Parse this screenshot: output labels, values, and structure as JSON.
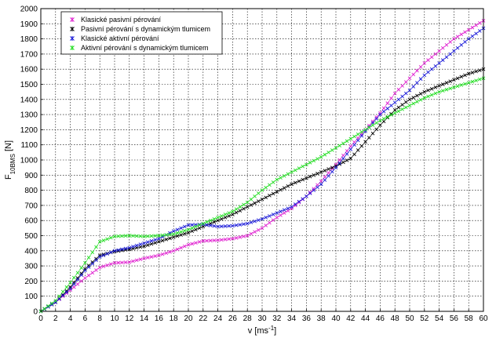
{
  "chart_data": {
    "type": "line",
    "title": "",
    "xlabel": "v [ms",
    "xlabel_sup": "-1",
    "xlabel_close": "]",
    "ylabel_main": "F",
    "ylabel_sub": "10BMS",
    "ylabel_unit": " [N]",
    "xlim": [
      0,
      60
    ],
    "ylim": [
      0,
      2000
    ],
    "x_ticks": [
      0,
      2,
      4,
      6,
      8,
      10,
      12,
      14,
      16,
      18,
      20,
      22,
      24,
      26,
      28,
      30,
      32,
      34,
      36,
      38,
      40,
      42,
      44,
      46,
      48,
      50,
      52,
      54,
      56,
      58,
      60
    ],
    "y_ticks": [
      0,
      100,
      200,
      300,
      400,
      500,
      600,
      700,
      800,
      900,
      1000,
      1100,
      1200,
      1300,
      1400,
      1500,
      1600,
      1700,
      1800,
      1900,
      2000
    ],
    "grid": true,
    "legend_placement": "top-left",
    "marker": "x",
    "series": [
      {
        "name": "Klasické pasivní pérování",
        "color": "#e020d0",
        "points": [
          [
            0,
            0
          ],
          [
            2,
            60
          ],
          [
            4,
            140
          ],
          [
            6,
            220
          ],
          [
            8,
            290
          ],
          [
            10,
            320
          ],
          [
            12,
            325
          ],
          [
            14,
            350
          ],
          [
            16,
            370
          ],
          [
            18,
            400
          ],
          [
            20,
            440
          ],
          [
            22,
            465
          ],
          [
            24,
            470
          ],
          [
            26,
            480
          ],
          [
            28,
            500
          ],
          [
            30,
            550
          ],
          [
            32,
            620
          ],
          [
            34,
            680
          ],
          [
            36,
            760
          ],
          [
            38,
            860
          ],
          [
            40,
            970
          ],
          [
            42,
            1090
          ],
          [
            44,
            1200
          ],
          [
            46,
            1310
          ],
          [
            48,
            1440
          ],
          [
            50,
            1540
          ],
          [
            52,
            1640
          ],
          [
            54,
            1720
          ],
          [
            56,
            1800
          ],
          [
            58,
            1860
          ],
          [
            60,
            1920
          ]
        ]
      },
      {
        "name": "Pasivní pérování s dynamickým tlumicem",
        "color": "#000000",
        "points": [
          [
            0,
            0
          ],
          [
            2,
            60
          ],
          [
            4,
            160
          ],
          [
            6,
            280
          ],
          [
            8,
            370
          ],
          [
            10,
            395
          ],
          [
            12,
            410
          ],
          [
            14,
            430
          ],
          [
            16,
            460
          ],
          [
            18,
            490
          ],
          [
            20,
            520
          ],
          [
            22,
            560
          ],
          [
            24,
            600
          ],
          [
            26,
            640
          ],
          [
            28,
            690
          ],
          [
            30,
            740
          ],
          [
            32,
            790
          ],
          [
            34,
            840
          ],
          [
            36,
            880
          ],
          [
            38,
            920
          ],
          [
            40,
            960
          ],
          [
            42,
            1010
          ],
          [
            44,
            1120
          ],
          [
            46,
            1230
          ],
          [
            48,
            1330
          ],
          [
            50,
            1400
          ],
          [
            52,
            1450
          ],
          [
            54,
            1490
          ],
          [
            56,
            1530
          ],
          [
            58,
            1570
          ],
          [
            60,
            1600
          ]
        ]
      },
      {
        "name": "Klasické aktivní pérování",
        "color": "#1a1ad8",
        "points": [
          [
            0,
            0
          ],
          [
            2,
            60
          ],
          [
            4,
            150
          ],
          [
            6,
            270
          ],
          [
            8,
            360
          ],
          [
            10,
            400
          ],
          [
            12,
            420
          ],
          [
            14,
            450
          ],
          [
            16,
            480
          ],
          [
            18,
            530
          ],
          [
            20,
            570
          ],
          [
            22,
            575
          ],
          [
            24,
            560
          ],
          [
            26,
            565
          ],
          [
            28,
            580
          ],
          [
            30,
            610
          ],
          [
            32,
            650
          ],
          [
            34,
            690
          ],
          [
            36,
            760
          ],
          [
            38,
            840
          ],
          [
            40,
            950
          ],
          [
            42,
            1070
          ],
          [
            44,
            1190
          ],
          [
            46,
            1300
          ],
          [
            48,
            1380
          ],
          [
            50,
            1460
          ],
          [
            52,
            1560
          ],
          [
            54,
            1640
          ],
          [
            56,
            1720
          ],
          [
            58,
            1800
          ],
          [
            60,
            1870
          ]
        ]
      },
      {
        "name": "Aktivní  pérování s dynamickým tlumicem",
        "color": "#22dd22",
        "points": [
          [
            0,
            0
          ],
          [
            2,
            70
          ],
          [
            4,
            190
          ],
          [
            6,
            320
          ],
          [
            8,
            460
          ],
          [
            10,
            495
          ],
          [
            12,
            500
          ],
          [
            14,
            495
          ],
          [
            16,
            500
          ],
          [
            18,
            510
          ],
          [
            20,
            540
          ],
          [
            22,
            580
          ],
          [
            24,
            620
          ],
          [
            26,
            660
          ],
          [
            28,
            720
          ],
          [
            30,
            800
          ],
          [
            32,
            870
          ],
          [
            34,
            920
          ],
          [
            36,
            970
          ],
          [
            38,
            1020
          ],
          [
            40,
            1080
          ],
          [
            42,
            1140
          ],
          [
            44,
            1200
          ],
          [
            46,
            1260
          ],
          [
            48,
            1310
          ],
          [
            50,
            1360
          ],
          [
            52,
            1410
          ],
          [
            54,
            1450
          ],
          [
            56,
            1480
          ],
          [
            58,
            1510
          ],
          [
            60,
            1540
          ]
        ]
      }
    ]
  }
}
